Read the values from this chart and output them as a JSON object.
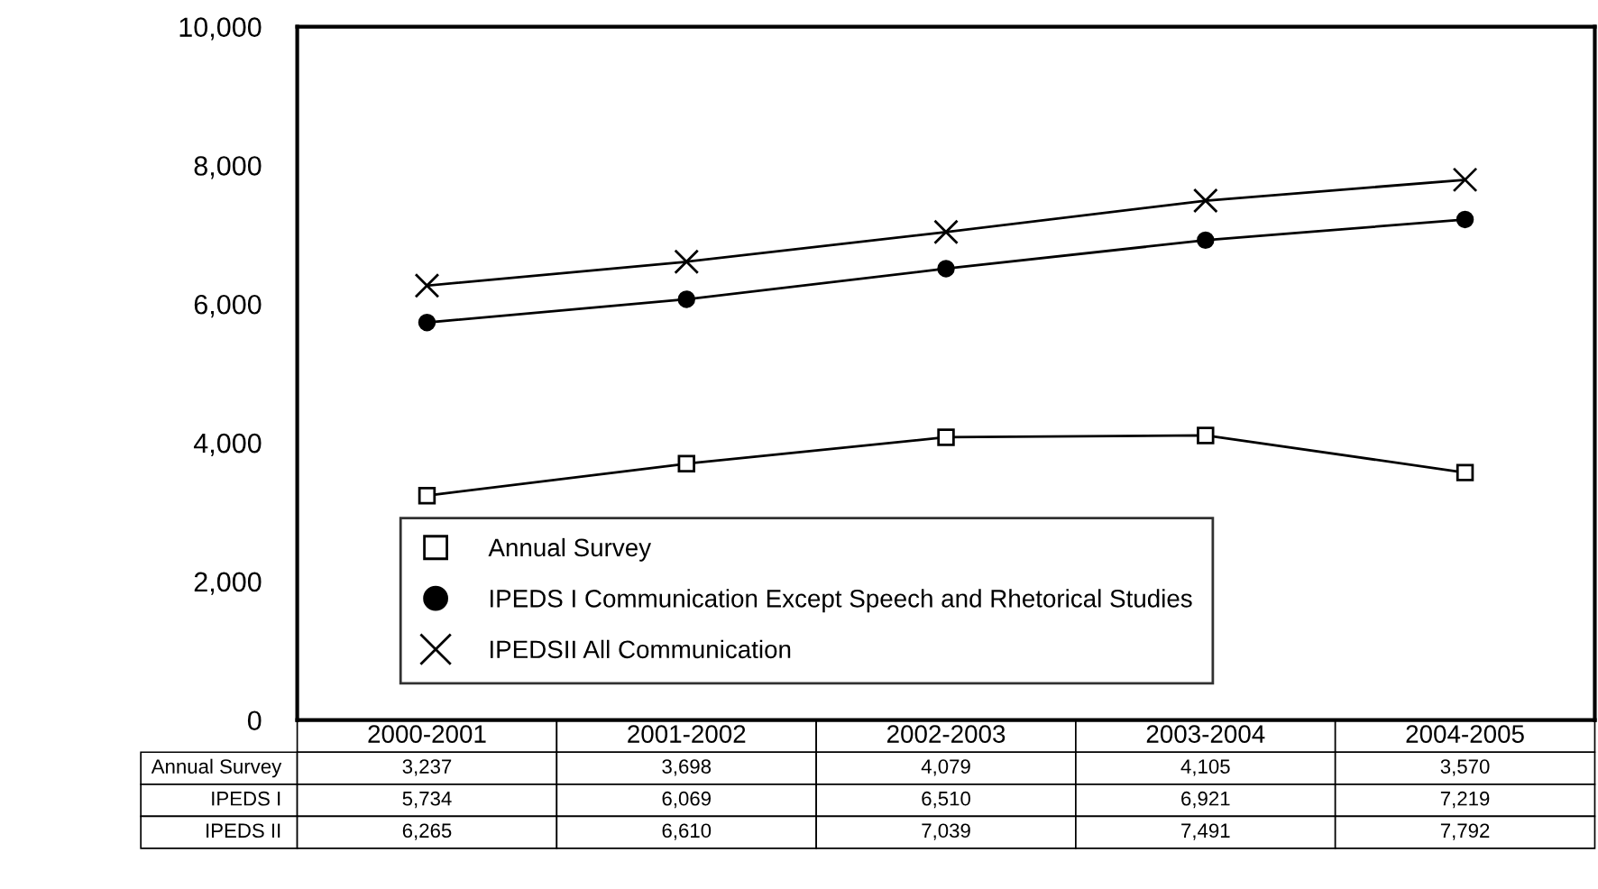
{
  "chart_data": {
    "type": "line",
    "categories": [
      "2000-2001",
      "2001-2002",
      "2002-2003",
      "2003-2004",
      "2004-2005"
    ],
    "series": [
      {
        "name": "Annual Survey",
        "color": "#000000",
        "marker": "square",
        "values": [
          3237,
          3698,
          4079,
          4105,
          3570
        ],
        "value_labels": [
          "3,237",
          "3,698",
          "4,079",
          "4,105",
          "3,570"
        ]
      },
      {
        "name": "IPEDS I Communication Except Speech and Rhetorical Studies",
        "color": "#000000",
        "marker": "circle",
        "values": [
          5734,
          6069,
          6510,
          6921,
          7219
        ],
        "value_labels": [
          "5,734",
          "6,069",
          "6,510",
          "6,921",
          "7,219"
        ]
      },
      {
        "name": "IPEDSII All Communication",
        "color": "#000000",
        "marker": "cross",
        "values": [
          6265,
          6610,
          7039,
          7491,
          7792
        ],
        "value_labels": [
          "6,265",
          "6,610",
          "7,039",
          "7,491",
          "7,792"
        ]
      }
    ],
    "annotations": [
      "Annual Survey",
      "IPEDS I",
      "IPEDS II"
    ],
    "ylim": [
      0,
      10000
    ],
    "yticks": [
      0,
      {
        "value": 2000,
        "label": "2,000"
      },
      {
        "value": 4000,
        "label": "4,000"
      },
      {
        "value": 6000,
        "label": "6,000"
      },
      {
        "value": 8000,
        "label": "8,000"
      },
      {
        "value": 10000,
        "label": "10,000"
      }
    ],
    "grid": false,
    "legend": "bottom",
    "line_style": "solid"
  }
}
